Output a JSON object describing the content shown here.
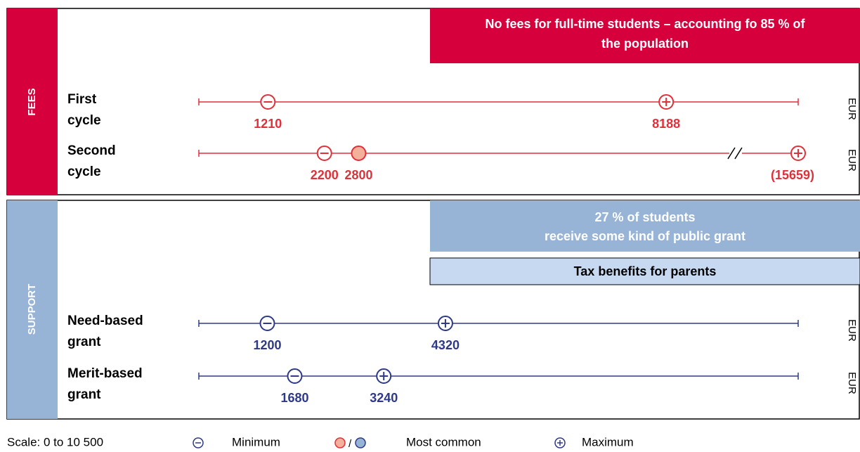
{
  "xlim": [
    0,
    10500
  ],
  "fees": {
    "label": "FEES",
    "banner": [
      "No fees for full-time students – accounting fo 85 % of",
      "the population"
    ],
    "rows": [
      {
        "label": [
          "First",
          "cycle"
        ],
        "min": 1210,
        "max": 8188,
        "unit": "EUR"
      },
      {
        "label": [
          "Second",
          "cycle"
        ],
        "min": 2200,
        "common": 2800,
        "max": 15659,
        "max_label": "(15659)",
        "unit": "EUR"
      }
    ]
  },
  "support": {
    "label": "SUPPORT",
    "banners": [
      [
        "27 % of students",
        "receive some kind of public grant"
      ],
      [
        "Tax benefits for parents"
      ]
    ],
    "rows": [
      {
        "label": [
          "Need-based",
          "grant"
        ],
        "min": 1200,
        "max": 4320,
        "unit": "EUR"
      },
      {
        "label": [
          "Merit-based",
          "grant"
        ],
        "min": 1680,
        "max": 3240,
        "unit": "EUR"
      }
    ]
  },
  "legend": {
    "scale": "Scale: 0 to 10 500",
    "min": "Minimum",
    "sep": "/",
    "common": "Most common",
    "max": "Maximum"
  }
}
